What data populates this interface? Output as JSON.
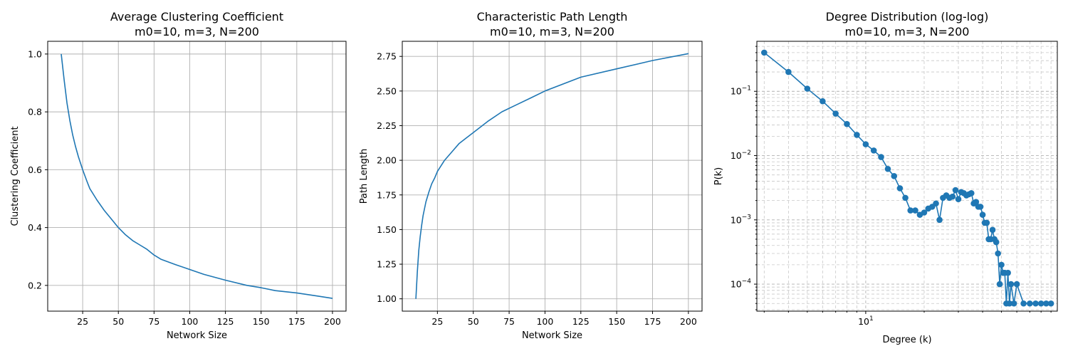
{
  "colors": {
    "series": "#1f77b4"
  },
  "chart_data": [
    {
      "type": "line",
      "title": "Average Clustering Coefficient",
      "subtitle": "m0=10, m=3, N=200",
      "xlabel": "Network Size",
      "ylabel": "Clustering Coefficient",
      "xlim": [
        0.5,
        209.5
      ],
      "ylim": [
        0.111,
        1.044
      ],
      "xticks": [
        25,
        50,
        75,
        100,
        125,
        150,
        175,
        200
      ],
      "yticks": [
        0.2,
        0.4,
        0.6,
        0.8,
        1.0
      ],
      "ytick_labels": [
        "0.2",
        "0.4",
        "0.6",
        "0.8",
        "1.0"
      ],
      "grid": true,
      "x": [
        10,
        12,
        14,
        16,
        18,
        20,
        22,
        25,
        28,
        30,
        35,
        40,
        45,
        50,
        55,
        60,
        65,
        70,
        75,
        80,
        90,
        100,
        110,
        125,
        140,
        150,
        160,
        175,
        190,
        200
      ],
      "y": [
        1.0,
        0.91,
        0.83,
        0.77,
        0.72,
        0.68,
        0.645,
        0.6,
        0.56,
        0.535,
        0.495,
        0.46,
        0.43,
        0.4,
        0.375,
        0.355,
        0.34,
        0.325,
        0.305,
        0.29,
        0.272,
        0.255,
        0.238,
        0.218,
        0.2,
        0.192,
        0.182,
        0.174,
        0.163,
        0.155
      ]
    },
    {
      "type": "line",
      "title": "Characteristic Path Length",
      "subtitle": "m0=10, m=3, N=200",
      "xlabel": "Network Size",
      "ylabel": "Path Length",
      "xlim": [
        0.5,
        209.5
      ],
      "ylim": [
        0.911,
        2.859
      ],
      "xticks": [
        25,
        50,
        75,
        100,
        125,
        150,
        175,
        200
      ],
      "yticks": [
        1.0,
        1.25,
        1.5,
        1.75,
        2.0,
        2.25,
        2.5,
        2.75
      ],
      "ytick_labels": [
        "1.00",
        "1.25",
        "1.50",
        "1.75",
        "2.00",
        "2.25",
        "2.50",
        "2.75"
      ],
      "grid": true,
      "x": [
        10,
        11,
        12,
        13,
        14,
        15,
        17,
        19,
        21,
        23,
        25,
        30,
        35,
        40,
        45,
        50,
        60,
        70,
        80,
        90,
        100,
        125,
        150,
        175,
        200
      ],
      "y": [
        1.0,
        1.2,
        1.35,
        1.45,
        1.53,
        1.6,
        1.7,
        1.77,
        1.83,
        1.87,
        1.92,
        2.0,
        2.06,
        2.12,
        2.16,
        2.2,
        2.28,
        2.35,
        2.4,
        2.45,
        2.5,
        2.6,
        2.66,
        2.72,
        2.77
      ]
    },
    {
      "type": "line",
      "title": "Degree Distribution (log-log)",
      "subtitle": "m0=10, m=3, N=200",
      "xlabel": "Degree (k)",
      "ylabel": "P(k)",
      "xscale": "log",
      "yscale": "log",
      "xlim": [
        2.75,
        97
      ],
      "ylim": [
        3.8e-05,
        0.6
      ],
      "xticks": [
        10
      ],
      "xtick_labels": [
        "10^1"
      ],
      "yticks": [
        0.0001,
        0.001,
        0.01,
        0.1
      ],
      "ytick_labels": [
        "10^-4",
        "10^-3",
        "10^-2",
        "10^-1"
      ],
      "grid": true,
      "markers": true,
      "x": [
        3,
        4,
        5,
        6,
        7,
        8,
        9,
        10,
        11,
        12,
        13,
        14,
        15,
        16,
        17,
        18,
        19,
        20,
        21,
        22,
        23,
        24,
        25,
        26,
        27,
        28,
        29,
        30,
        31,
        32,
        33,
        34,
        35,
        36,
        37,
        38,
        39,
        40,
        41,
        42,
        43,
        44,
        45,
        46,
        47,
        48,
        49,
        50,
        51,
        52,
        53,
        54,
        55,
        56,
        58,
        60,
        65,
        70,
        75,
        80,
        85,
        90
      ],
      "y": [
        0.4,
        0.2,
        0.11,
        0.07,
        0.045,
        0.031,
        0.021,
        0.015,
        0.012,
        0.0095,
        0.0062,
        0.0048,
        0.0031,
        0.0022,
        0.0014,
        0.0014,
        0.0012,
        0.0013,
        0.0015,
        0.0016,
        0.0018,
        0.001,
        0.0022,
        0.0024,
        0.0022,
        0.0023,
        0.0029,
        0.0021,
        0.0027,
        0.0026,
        0.0024,
        0.0025,
        0.0026,
        0.0018,
        0.0019,
        0.0016,
        0.0016,
        0.0012,
        0.0009,
        0.0009,
        0.0005,
        0.0005,
        0.0007,
        0.0005,
        0.00045,
        0.0003,
        0.0001,
        0.0002,
        0.00015,
        0.00015,
        5e-05,
        0.00015,
        5e-05,
        0.0001,
        5e-05,
        0.0001,
        5e-05,
        5e-05,
        5e-05,
        5e-05,
        5e-05,
        5e-05
      ]
    }
  ]
}
